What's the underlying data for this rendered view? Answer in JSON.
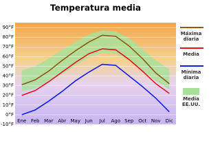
{
  "chart_data": {
    "type": "line",
    "title": "Temperatura media",
    "categories": [
      "Ene",
      "Feb",
      "Mar",
      "Abr",
      "May",
      "Jun",
      "Jul",
      "Ago",
      "Sep",
      "Oct",
      "Nov",
      "Dic"
    ],
    "ylim": [
      -10,
      95
    ],
    "yticks": [
      {
        "value": -10,
        "label": "-10°F"
      },
      {
        "value": 0,
        "label": "0°F"
      },
      {
        "value": 10,
        "label": "10°F"
      },
      {
        "value": 20,
        "label": "20°F"
      },
      {
        "value": 30,
        "label": "30°F"
      },
      {
        "value": 40,
        "label": "40°F"
      },
      {
        "value": 50,
        "label": "50°F"
      },
      {
        "value": 60,
        "label": "60°F"
      },
      {
        "value": 70,
        "label": "70°F"
      },
      {
        "value": 80,
        "label": "80°F"
      },
      {
        "value": 90,
        "label": "90°F"
      }
    ],
    "grid": true,
    "series": [
      {
        "name": "Máxima diaria",
        "color": "#8b5a14",
        "values": [
          31,
          36,
          45,
          56,
          66,
          75,
          82,
          81,
          71,
          58,
          43,
          32
        ]
      },
      {
        "name": "Media",
        "color": "#e8101c",
        "values": [
          20,
          25,
          34,
          44,
          54,
          63,
          68,
          67,
          57,
          45,
          32,
          22
        ]
      },
      {
        "name": "Mínima diaria",
        "color": "#1020e0",
        "values": [
          0,
          5,
          14,
          24,
          35,
          44,
          52,
          51,
          40,
          29,
          17,
          3
        ]
      },
      {
        "name": "Media EE.UU.",
        "color": "#a8e09a",
        "values": [
          46,
          50,
          58,
          67,
          75,
          83,
          87,
          86,
          79,
          68,
          56,
          47
        ],
        "lower": [
          24,
          27,
          34,
          42,
          51,
          59,
          64,
          63,
          56,
          45,
          35,
          26
        ]
      }
    ]
  }
}
